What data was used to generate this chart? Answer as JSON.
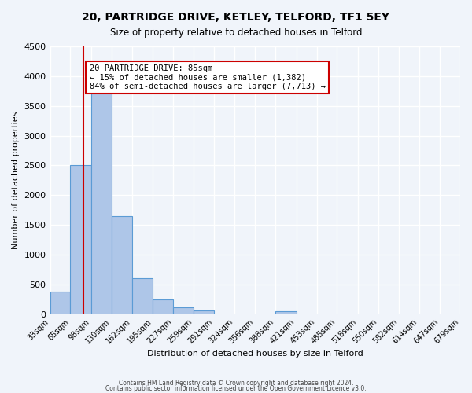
{
  "title1": "20, PARTRIDGE DRIVE, KETLEY, TELFORD, TF1 5EY",
  "title2": "Size of property relative to detached houses in Telford",
  "xlabel": "Distribution of detached houses by size in Telford",
  "ylabel": "Number of detached properties",
  "bar_edges": [
    33,
    65,
    98,
    130,
    162,
    195,
    227,
    259,
    291,
    324,
    356,
    388,
    421,
    453,
    485,
    518,
    550,
    582,
    614,
    647,
    679
  ],
  "bar_heights": [
    380,
    2500,
    3750,
    1640,
    600,
    250,
    110,
    60,
    0,
    0,
    0,
    50,
    0,
    0,
    0,
    0,
    0,
    0,
    0,
    0
  ],
  "bar_color": "#aec6e8",
  "bar_edge_color": "#5b9bd5",
  "bar_face_alpha": 0.5,
  "red_line_x": 85,
  "red_line_color": "#cc0000",
  "annotation_text": "20 PARTRIDGE DRIVE: 85sqm\n← 15% of detached houses are smaller (1,382)\n84% of semi-detached houses are larger (7,713) →",
  "annotation_box_color": "#ffffff",
  "annotation_box_edge": "#cc0000",
  "ylim": [
    0,
    4500
  ],
  "yticks": [
    0,
    500,
    1000,
    1500,
    2000,
    2500,
    3000,
    3500,
    4000,
    4500
  ],
  "tick_labels": [
    "33sqm",
    "65sqm",
    "98sqm",
    "130sqm",
    "162sqm",
    "195sqm",
    "227sqm",
    "259sqm",
    "291sqm",
    "324sqm",
    "356sqm",
    "388sqm",
    "421sqm",
    "453sqm",
    "485sqm",
    "518sqm",
    "550sqm",
    "582sqm",
    "614sqm",
    "647sqm",
    "679sqm"
  ],
  "footer1": "Contains HM Land Registry data © Crown copyright and database right 2024.",
  "footer2": "Contains public sector information licensed under the Open Government Licence v3.0.",
  "bg_color": "#f0f4fa",
  "grid_color": "#ffffff"
}
